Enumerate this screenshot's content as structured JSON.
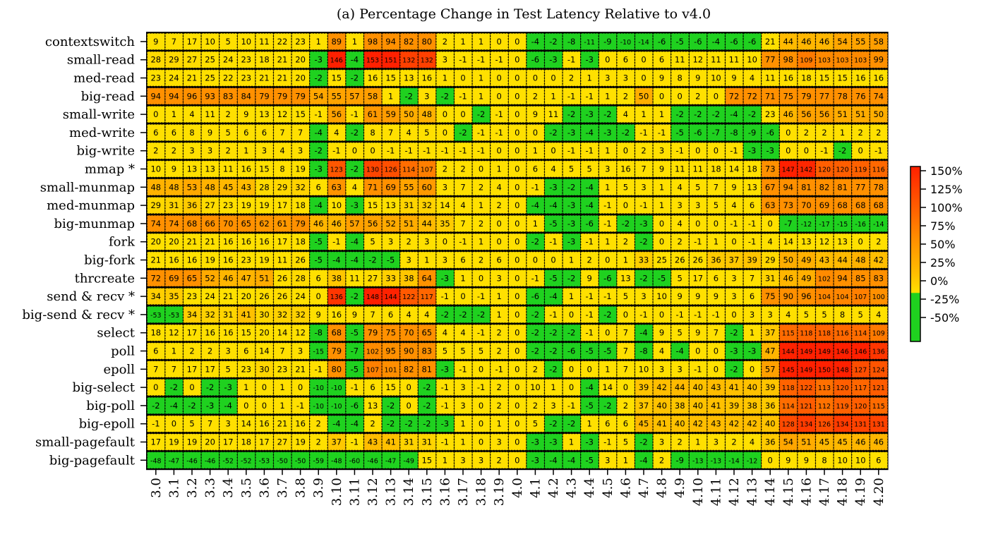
{
  "chart_data": {
    "type": "heatmap",
    "title": "(a) Percentage Change in Test Latency Relative to v4.0",
    "columns": [
      "3.0",
      "3.1",
      "3.2",
      "3.3",
      "3.4",
      "3.5",
      "3.6",
      "3.7",
      "3.8",
      "3.9",
      "3.10",
      "3.11",
      "3.12",
      "3.13",
      "3.14",
      "3.15",
      "3.16",
      "3.17",
      "3.18",
      "3.19",
      "4.0",
      "4.1",
      "4.2",
      "4.3",
      "4.4",
      "4.5",
      "4.6",
      "4.7",
      "4.8",
      "4.9",
      "4.10",
      "4.11",
      "4.12",
      "4.13",
      "4.14",
      "4.15",
      "4.16",
      "4.17",
      "4.18",
      "4.19",
      "4.20"
    ],
    "rows": [
      {
        "name": "contextswitch",
        "values": [
          9,
          7,
          17,
          10,
          5,
          10,
          11,
          22,
          23,
          1,
          89,
          1,
          98,
          94,
          82,
          80,
          2,
          1,
          1,
          0,
          0,
          -4,
          -2,
          -8,
          -11,
          -9,
          -10,
          -14,
          -6,
          -5,
          -6,
          -4,
          -6,
          -6,
          21,
          44,
          46,
          46,
          54,
          55,
          58
        ]
      },
      {
        "name": "small-read",
        "values": [
          28,
          29,
          27,
          25,
          24,
          23,
          18,
          21,
          20,
          -3,
          146,
          -4,
          153,
          151,
          132,
          132,
          3,
          -1,
          -1,
          -1,
          0,
          -6,
          -3,
          -1,
          -3,
          0,
          6,
          0,
          6,
          11,
          12,
          11,
          11,
          10,
          77,
          98,
          109,
          103,
          103,
          103,
          99
        ]
      },
      {
        "name": "med-read",
        "values": [
          23,
          24,
          21,
          25,
          22,
          23,
          21,
          21,
          20,
          -2,
          15,
          -2,
          16,
          15,
          13,
          16,
          1,
          0,
          1,
          0,
          0,
          0,
          0,
          2,
          1,
          3,
          3,
          0,
          9,
          8,
          9,
          10,
          9,
          4,
          11,
          16,
          18,
          15,
          15,
          16,
          16
        ]
      },
      {
        "name": "big-read",
        "values": [
          94,
          94,
          96,
          93,
          83,
          84,
          79,
          79,
          79,
          54,
          55,
          57,
          58,
          1,
          -2,
          3,
          -2,
          -1,
          1,
          0,
          0,
          2,
          1,
          -1,
          -1,
          1,
          2,
          50,
          0,
          0,
          2,
          0,
          72,
          72,
          71,
          75,
          79,
          77,
          78,
          76,
          74
        ]
      },
      {
        "name": "small-write",
        "values": [
          0,
          1,
          4,
          11,
          2,
          9,
          13,
          12,
          15,
          -1,
          56,
          -1,
          61,
          59,
          50,
          48,
          0,
          0,
          -2,
          -1,
          0,
          9,
          11,
          -2,
          -3,
          -2,
          4,
          1,
          1,
          -2,
          -2,
          -2,
          -4,
          -2,
          23,
          46,
          56,
          56,
          51,
          51,
          50
        ]
      },
      {
        "name": "med-write",
        "values": [
          6,
          6,
          8,
          9,
          5,
          6,
          6,
          7,
          7,
          -4,
          4,
          -2,
          8,
          7,
          4,
          5,
          0,
          -2,
          -1,
          -1,
          0,
          0,
          -2,
          -3,
          -4,
          -3,
          -2,
          -1,
          -1,
          -5,
          -6,
          -7,
          -8,
          -9,
          -6,
          0,
          2,
          2,
          1,
          2,
          2
        ]
      },
      {
        "name": "big-write",
        "values": [
          2,
          2,
          3,
          3,
          2,
          1,
          3,
          4,
          3,
          -2,
          -1,
          0,
          0,
          -1,
          -1,
          -1,
          -1,
          -1,
          -1,
          0,
          0,
          1,
          0,
          -1,
          -1,
          1,
          0,
          2,
          3,
          -1,
          0,
          0,
          -1,
          -3,
          -3,
          0,
          0,
          -1,
          -2,
          0,
          -1
        ]
      },
      {
        "name": "mmap *",
        "values": [
          10,
          9,
          13,
          13,
          11,
          16,
          15,
          8,
          19,
          -3,
          123,
          -2,
          130,
          126,
          114,
          107,
          2,
          2,
          0,
          1,
          0,
          6,
          4,
          5,
          5,
          3,
          16,
          7,
          9,
          11,
          11,
          18,
          14,
          18,
          73,
          147,
          142,
          120,
          120,
          119,
          116
        ]
      },
      {
        "name": "small-munmap",
        "values": [
          48,
          48,
          53,
          48,
          45,
          43,
          28,
          29,
          32,
          6,
          63,
          4,
          71,
          69,
          55,
          60,
          3,
          7,
          2,
          4,
          0,
          -1,
          -3,
          -2,
          -4,
          1,
          5,
          3,
          1,
          4,
          5,
          7,
          9,
          13,
          67,
          94,
          81,
          82,
          81,
          77,
          78
        ]
      },
      {
        "name": "med-munmap",
        "values": [
          29,
          31,
          36,
          27,
          23,
          19,
          19,
          17,
          18,
          -4,
          10,
          -3,
          15,
          13,
          31,
          32,
          14,
          4,
          1,
          2,
          0,
          -4,
          -4,
          -3,
          -4,
          -1,
          0,
          -1,
          1,
          3,
          3,
          5,
          4,
          6,
          63,
          73,
          70,
          69,
          68,
          68,
          68
        ]
      },
      {
        "name": "big-munmap",
        "values": [
          74,
          74,
          68,
          66,
          70,
          65,
          62,
          61,
          79,
          46,
          46,
          57,
          56,
          52,
          51,
          44,
          35,
          7,
          2,
          0,
          0,
          1,
          -5,
          -3,
          -6,
          -1,
          -2,
          -3,
          0,
          4,
          0,
          0,
          -1,
          -1,
          0,
          -7,
          -12,
          -17,
          -15,
          -16,
          -14
        ]
      },
      {
        "name": "fork",
        "values": [
          20,
          20,
          21,
          21,
          16,
          16,
          16,
          17,
          18,
          -5,
          -1,
          -4,
          5,
          3,
          2,
          3,
          0,
          -1,
          1,
          0,
          0,
          -2,
          -1,
          -3,
          -1,
          1,
          2,
          -2,
          0,
          2,
          -1,
          1,
          0,
          -1,
          4,
          14,
          13,
          12,
          13,
          0,
          2
        ]
      },
      {
        "name": "big-fork",
        "values": [
          21,
          16,
          16,
          19,
          16,
          23,
          19,
          11,
          26,
          -5,
          -4,
          -4,
          -2,
          -5,
          3,
          1,
          3,
          6,
          2,
          6,
          0,
          0,
          0,
          1,
          2,
          0,
          1,
          33,
          25,
          26,
          26,
          36,
          37,
          39,
          29,
          50,
          49,
          43,
          44,
          48,
          42
        ]
      },
      {
        "name": "thrcreate",
        "values": [
          72,
          69,
          65,
          52,
          46,
          47,
          51,
          26,
          28,
          6,
          38,
          11,
          27,
          33,
          38,
          64,
          -3,
          1,
          0,
          3,
          0,
          -1,
          -5,
          -2,
          9,
          -6,
          13,
          -2,
          -5,
          5,
          17,
          6,
          3,
          7,
          31,
          46,
          49,
          102,
          94,
          85,
          83
        ]
      },
      {
        "name": "send & recv *",
        "values": [
          34,
          35,
          23,
          24,
          21,
          20,
          26,
          26,
          24,
          0,
          136,
          -2,
          148,
          144,
          122,
          117,
          -1,
          0,
          -1,
          1,
          0,
          -6,
          -4,
          1,
          -1,
          -1,
          5,
          3,
          10,
          9,
          9,
          9,
          3,
          6,
          75,
          90,
          96,
          104,
          104,
          107,
          100
        ]
      },
      {
        "name": "big-send & recv *",
        "values": [
          -53,
          -53,
          34,
          32,
          31,
          41,
          30,
          32,
          32,
          9,
          16,
          9,
          7,
          6,
          4,
          4,
          -2,
          -2,
          -2,
          1,
          0,
          -2,
          -1,
          0,
          -1,
          -2,
          0,
          -1,
          0,
          -1,
          -1,
          -1,
          0,
          3,
          3,
          4,
          5,
          5,
          8,
          5,
          4
        ]
      },
      {
        "name": "select",
        "values": [
          18,
          12,
          17,
          16,
          16,
          15,
          20,
          14,
          12,
          -8,
          68,
          -5,
          79,
          75,
          70,
          65,
          4,
          4,
          -1,
          2,
          0,
          -2,
          -2,
          -2,
          -1,
          0,
          7,
          -4,
          9,
          5,
          9,
          7,
          -2,
          1,
          37,
          115,
          118,
          118,
          116,
          114,
          109
        ]
      },
      {
        "name": "poll",
        "values": [
          6,
          1,
          2,
          2,
          3,
          6,
          14,
          7,
          3,
          -15,
          79,
          -7,
          102,
          95,
          90,
          83,
          5,
          5,
          5,
          2,
          0,
          -2,
          -2,
          -6,
          -5,
          -5,
          7,
          -8,
          4,
          -4,
          0,
          0,
          -3,
          -3,
          47,
          144,
          149,
          149,
          146,
          146,
          136
        ]
      },
      {
        "name": "epoll",
        "values": [
          7,
          7,
          17,
          17,
          5,
          23,
          30,
          23,
          21,
          -1,
          80,
          -5,
          107,
          101,
          82,
          81,
          -3,
          -1,
          0,
          -1,
          0,
          2,
          -2,
          0,
          0,
          1,
          7,
          10,
          3,
          3,
          -1,
          0,
          -2,
          0,
          57,
          145,
          149,
          150,
          148,
          127,
          124
        ]
      },
      {
        "name": "big-select",
        "values": [
          0,
          -2,
          0,
          -2,
          -3,
          1,
          0,
          1,
          0,
          -10,
          -10,
          -1,
          6,
          15,
          0,
          -2,
          -1,
          3,
          -1,
          2,
          0,
          10,
          1,
          0,
          -4,
          14,
          0,
          39,
          42,
          44,
          40,
          43,
          41,
          40,
          39,
          118,
          122,
          113,
          120,
          117,
          121
        ]
      },
      {
        "name": "big-poll",
        "values": [
          -2,
          -4,
          -2,
          -3,
          -4,
          0,
          0,
          1,
          -1,
          -10,
          -10,
          -6,
          13,
          -2,
          0,
          -2,
          -1,
          3,
          0,
          2,
          0,
          2,
          3,
          -1,
          -5,
          -2,
          2,
          37,
          40,
          38,
          40,
          41,
          39,
          38,
          36,
          114,
          121,
          112,
          119,
          120,
          115
        ]
      },
      {
        "name": "big-epoll",
        "values": [
          -1,
          0,
          5,
          7,
          3,
          14,
          16,
          21,
          16,
          2,
          -4,
          -4,
          2,
          -2,
          -2,
          -2,
          -3,
          1,
          0,
          1,
          0,
          5,
          -2,
          -2,
          1,
          6,
          6,
          45,
          41,
          40,
          42,
          43,
          42,
          42,
          40,
          128,
          134,
          126,
          134,
          131,
          131
        ]
      },
      {
        "name": "small-pagefault",
        "values": [
          17,
          19,
          19,
          20,
          17,
          18,
          17,
          27,
          19,
          2,
          37,
          -1,
          43,
          41,
          31,
          31,
          -1,
          1,
          0,
          3,
          0,
          -3,
          -3,
          1,
          -3,
          -1,
          5,
          -2,
          3,
          2,
          1,
          3,
          2,
          4,
          36,
          54,
          51,
          45,
          45,
          46,
          46
        ]
      },
      {
        "name": "big-pagefault",
        "values": [
          -48,
          -47,
          -46,
          -46,
          -52,
          -52,
          -53,
          -50,
          -50,
          -59,
          -48,
          -60,
          -46,
          -47,
          -49,
          15,
          1,
          3,
          3,
          2,
          0,
          -3,
          -4,
          -4,
          -5,
          3,
          1,
          -4,
          2,
          -9,
          -13,
          -13,
          -14,
          -12,
          0,
          9,
          9,
          8,
          10,
          10,
          6
        ]
      }
    ],
    "colorbar": {
      "ticks": [
        "150%",
        "125%",
        "100%",
        "75%",
        "50%",
        "25%",
        "0%",
        "-25%",
        "-50%"
      ],
      "range": [
        -60,
        160
      ]
    },
    "colors": {
      "negative": "#1fd11f",
      "low": "#ffe000",
      "mid": "#ff9000",
      "high": "#ff2000"
    }
  }
}
